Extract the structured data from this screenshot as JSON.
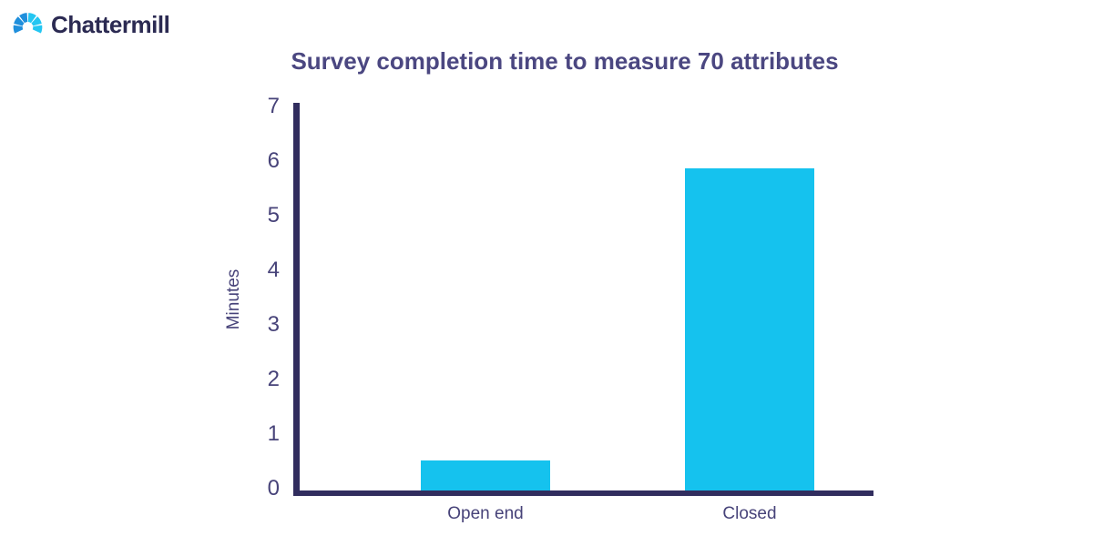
{
  "brand": {
    "name": "Chattermill",
    "logo_icon": "segmented-arch",
    "colors": {
      "icon_dark_blue": "#1f8fdc",
      "icon_cyan": "#23c6f2",
      "text": "#2b2a52"
    }
  },
  "chart_data": {
    "type": "bar",
    "title": "Survey completion time to measure 70 attributes",
    "categories": [
      "Open end",
      "Closed"
    ],
    "values": [
      0.55,
      5.9
    ],
    "xlabel": "",
    "ylabel": "Minutes",
    "ylim": [
      0,
      7
    ],
    "yticks": [
      0,
      1,
      2,
      3,
      4,
      5,
      6,
      7
    ],
    "grid": false,
    "legend": false,
    "colors": {
      "bar": "#15c2ee",
      "axis": "#312d5e",
      "labels": "#474379",
      "title": "#4b4781"
    }
  }
}
